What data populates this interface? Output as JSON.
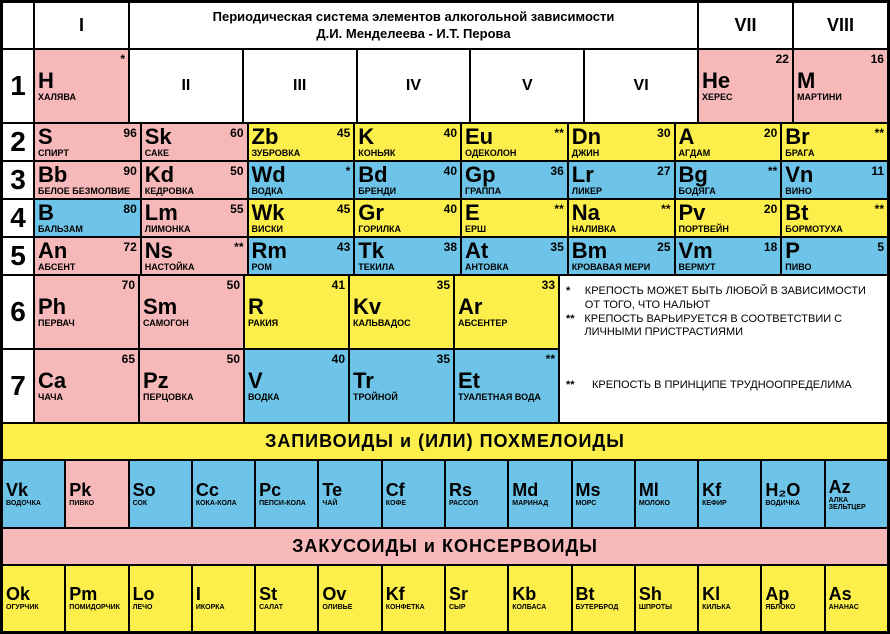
{
  "colors": {
    "pink": "#f6b8b8",
    "yellow": "#fcef4c",
    "blue": "#6dc4e8",
    "white": "#ffffff",
    "border": "#000000"
  },
  "title": {
    "l1": "Периодическая система элементов алкогольной зависимости",
    "l2": "Д.И. Менделеева - И.Т. Перова"
  },
  "roman": [
    "I",
    "II",
    "III",
    "IV",
    "V",
    "VI",
    "VII",
    "VIII"
  ],
  "rows": [
    [
      {
        "s": "H",
        "n": "*",
        "name": "ХАЛЯВА",
        "c": "pink"
      },
      null,
      null,
      null,
      null,
      null,
      {
        "s": "He",
        "n": "22",
        "name": "ХЕРЕС",
        "c": "pink"
      },
      {
        "s": "M",
        "n": "16",
        "name": "МАРТИНИ",
        "c": "pink"
      }
    ],
    [
      {
        "s": "S",
        "n": "96",
        "name": "СПИРТ",
        "c": "pink"
      },
      {
        "s": "Sk",
        "n": "60",
        "name": "САКЕ",
        "c": "pink"
      },
      {
        "s": "Zb",
        "n": "45",
        "name": "ЗУБРОВКА",
        "c": "yellow"
      },
      {
        "s": "K",
        "n": "40",
        "name": "КОНЬЯК",
        "c": "yellow"
      },
      {
        "s": "Eu",
        "n": "**",
        "name": "ОДЕКОЛОН",
        "c": "yellow"
      },
      {
        "s": "Dn",
        "n": "30",
        "name": "ДЖИН",
        "c": "yellow"
      },
      {
        "s": "A",
        "n": "20",
        "name": "АГДАМ",
        "c": "yellow"
      },
      {
        "s": "Br",
        "n": "**",
        "name": "БРАГА",
        "c": "yellow"
      }
    ],
    [
      {
        "s": "Bb",
        "n": "90",
        "name": "БЕЛОЕ БЕЗМОЛВИЕ",
        "c": "pink"
      },
      {
        "s": "Kd",
        "n": "50",
        "name": "КЕДРОВКА",
        "c": "pink"
      },
      {
        "s": "Wd",
        "n": "*",
        "name": "ВОДКА",
        "c": "blue"
      },
      {
        "s": "Bd",
        "n": "40",
        "name": "БРЕНДИ",
        "c": "blue"
      },
      {
        "s": "Gp",
        "n": "36",
        "name": "ГРАППА",
        "c": "blue"
      },
      {
        "s": "Lr",
        "n": "27",
        "name": "ЛИКЕР",
        "c": "blue"
      },
      {
        "s": "Bg",
        "n": "**",
        "name": "БОДЯГА",
        "c": "blue"
      },
      {
        "s": "Vn",
        "n": "11",
        "name": "ВИНО",
        "c": "blue"
      }
    ],
    [
      {
        "s": "B",
        "n": "80",
        "name": "БАЛЬЗАМ",
        "c": "blue"
      },
      {
        "s": "Lm",
        "n": "55",
        "name": "ЛИМОНКА",
        "c": "pink"
      },
      {
        "s": "Wk",
        "n": "45",
        "name": "ВИСКИ",
        "c": "yellow"
      },
      {
        "s": "Gr",
        "n": "40",
        "name": "ГОРИЛКА",
        "c": "yellow"
      },
      {
        "s": "E",
        "n": "**",
        "name": "ЕРШ",
        "c": "yellow"
      },
      {
        "s": "Na",
        "n": "**",
        "name": "НАЛИВКА",
        "c": "yellow"
      },
      {
        "s": "Pv",
        "n": "20",
        "name": "ПОРТВЕЙН",
        "c": "yellow"
      },
      {
        "s": "Bt",
        "n": "**",
        "name": "БОРМОТУХА",
        "c": "yellow"
      }
    ],
    [
      {
        "s": "An",
        "n": "72",
        "name": "АБСЕНТ",
        "c": "pink"
      },
      {
        "s": "Ns",
        "n": "**",
        "name": "НАСТОЙКА",
        "c": "pink"
      },
      {
        "s": "Rm",
        "n": "43",
        "name": "РОМ",
        "c": "blue"
      },
      {
        "s": "Tk",
        "n": "38",
        "name": "ТЕКИЛА",
        "c": "blue"
      },
      {
        "s": "At",
        "n": "35",
        "name": "АНТОВКА",
        "c": "blue"
      },
      {
        "s": "Bm",
        "n": "25",
        "name": "КРОВАВАЯ МЕРИ",
        "c": "blue"
      },
      {
        "s": "Vm",
        "n": "18",
        "name": "ВЕРМУТ",
        "c": "blue"
      },
      {
        "s": "P",
        "n": "5",
        "name": "ПИВО",
        "c": "blue"
      }
    ],
    [
      {
        "s": "Ph",
        "n": "70",
        "name": "ПЕРВАЧ",
        "c": "pink"
      },
      {
        "s": "Sm",
        "n": "50",
        "name": "САМОГОН",
        "c": "pink"
      },
      {
        "s": "R",
        "n": "41",
        "name": "РАКИЯ",
        "c": "yellow"
      },
      {
        "s": "Kv",
        "n": "35",
        "name": "КАЛЬВАДОС",
        "c": "yellow"
      },
      {
        "s": "Ar",
        "n": "33",
        "name": "АБСЕНТЕР",
        "c": "yellow"
      },
      null,
      null,
      null
    ],
    [
      {
        "s": "Ca",
        "n": "65",
        "name": "ЧАЧА",
        "c": "pink"
      },
      {
        "s": "Pz",
        "n": "50",
        "name": "ПЕРЦОВКА",
        "c": "pink"
      },
      {
        "s": "V",
        "n": "40",
        "name": "ВОДКА",
        "c": "blue"
      },
      {
        "s": "Tr",
        "n": "35",
        "name": "ТРОЙНОЙ",
        "c": "blue"
      },
      {
        "s": "Et",
        "n": "**",
        "name": "ТУАЛЕТНАЯ ВОДА",
        "c": "blue"
      },
      null,
      null,
      null
    ]
  ],
  "legend": [
    {
      "star": "*",
      "txt": "КРЕПОСТЬ МОЖЕТ БЫТЬ ЛЮБОЙ В ЗАВИСИМОСТИ ОТ ТОГО, ЧТО НАЛЬЮТ"
    },
    {
      "star": "**",
      "txt": "КРЕПОСТЬ ВАРЬИРУЕТСЯ В СООТВЕТСТВИИ С ЛИЧНЫМИ ПРИСТРАСТИЯМИ"
    },
    {
      "star": "**",
      "txt": "КРЕПОСТЬ В ПРИНЦИПЕ ТРУДНООПРЕДЕЛИМА"
    }
  ],
  "band1": "ЗАПИВОИДЫ и (ИЛИ) ПОХМЕЛОИДЫ",
  "zap": [
    {
      "s": "Vk",
      "name": "ВОДОЧКА",
      "c": "blue"
    },
    {
      "s": "Pk",
      "name": "ПИВКО",
      "c": "pink"
    },
    {
      "s": "So",
      "name": "СОК",
      "c": "blue"
    },
    {
      "s": "Cc",
      "name": "КОКА-КОЛА",
      "c": "blue"
    },
    {
      "s": "Pc",
      "name": "ПЕПСИ-КОЛА",
      "c": "blue"
    },
    {
      "s": "Te",
      "name": "ЧАЙ",
      "c": "blue"
    },
    {
      "s": "Cf",
      "name": "КОФЕ",
      "c": "blue"
    },
    {
      "s": "Rs",
      "name": "РАССОЛ",
      "c": "blue"
    },
    {
      "s": "Md",
      "name": "МАРИНАД",
      "c": "blue"
    },
    {
      "s": "Ms",
      "name": "МОРС",
      "c": "blue"
    },
    {
      "s": "Ml",
      "name": "МОЛОКО",
      "c": "blue"
    },
    {
      "s": "Kf",
      "name": "КЕФИР",
      "c": "blue"
    },
    {
      "s": "H₂O",
      "name": "ВОДИЧКА",
      "c": "blue"
    },
    {
      "s": "Az",
      "name": "АЛКА ЗЕЛЬТЦЕР",
      "c": "blue"
    }
  ],
  "band2": "ЗАКУСОИДЫ и КОНСЕРВОИДЫ",
  "zak": [
    {
      "s": "Ok",
      "name": "ОГУРЧИК",
      "c": "yellow"
    },
    {
      "s": "Pm",
      "name": "ПОМИДОРЧИК",
      "c": "yellow"
    },
    {
      "s": "Lo",
      "name": "ЛЕЧО",
      "c": "yellow"
    },
    {
      "s": "I",
      "name": "ИКОРКА",
      "c": "yellow"
    },
    {
      "s": "St",
      "name": "САЛАТ",
      "c": "yellow"
    },
    {
      "s": "Ov",
      "name": "ОЛИВЬЕ",
      "c": "yellow"
    },
    {
      "s": "Kf",
      "name": "КОНФЕТКА",
      "c": "yellow"
    },
    {
      "s": "Sr",
      "name": "СЫР",
      "c": "yellow"
    },
    {
      "s": "Kb",
      "name": "КОЛБАСА",
      "c": "yellow"
    },
    {
      "s": "Bt",
      "name": "БУТЕРБРОД",
      "c": "yellow"
    },
    {
      "s": "Sh",
      "name": "ШПРОТЫ",
      "c": "yellow"
    },
    {
      "s": "Kl",
      "name": "КИЛЬКА",
      "c": "yellow"
    },
    {
      "s": "Ap",
      "name": "ЯБЛОКО",
      "c": "yellow"
    },
    {
      "s": "As",
      "name": "АНАНАС",
      "c": "yellow"
    }
  ]
}
